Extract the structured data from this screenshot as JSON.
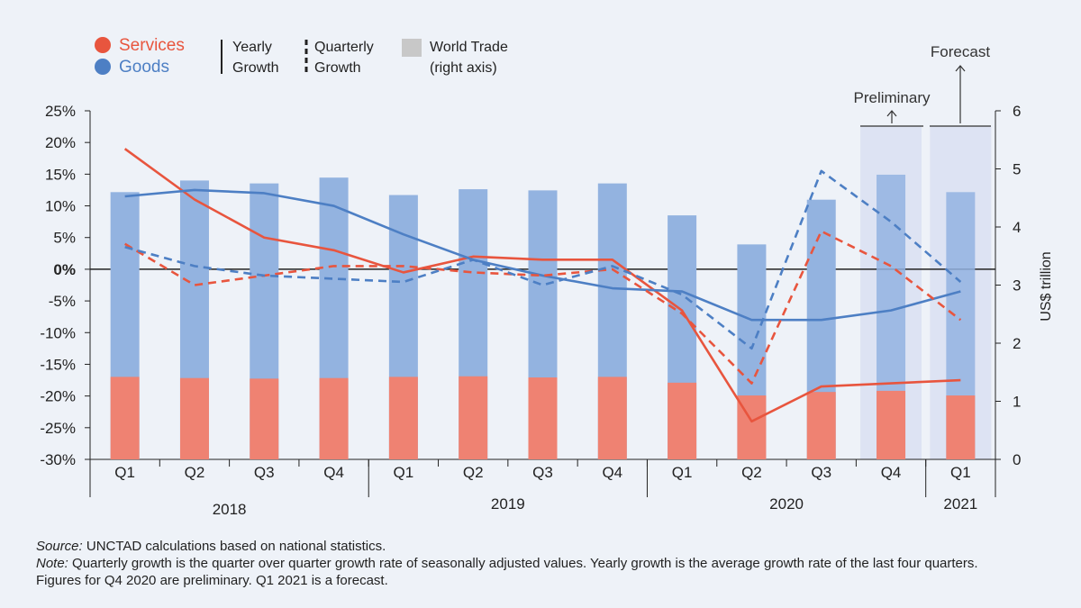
{
  "legend": {
    "services": "Services",
    "goods": "Goods",
    "yearly_line1": "Yearly",
    "yearly_line2": "Growth",
    "quarterly_line1": "Quarterly",
    "quarterly_line2": "Growth",
    "trade_line1": "World Trade",
    "trade_line2": "(right axis)"
  },
  "annotations": {
    "preliminary": "Preliminary",
    "forecast": "Forecast"
  },
  "notes": {
    "source_label": "Source:",
    "source_text": " UNCTAD calculations based on national statistics.",
    "note_label": "Note:",
    "note_text": " Quarterly growth is the quarter over quarter growth rate of seasonally adjusted values. Yearly growth is the average growth rate of the last four quarters.",
    "note_text2": "Figures for Q4 2020 are preliminary. Q1 2021 is a forecast."
  },
  "colors": {
    "services": "#e8553e",
    "goods": "#4d7fc4",
    "goods_bar": "#93b3e0",
    "services_bar": "#ef8272",
    "highlight": "#dde3f3",
    "trade_legend": "#c8c8c8"
  },
  "chart_data": {
    "type": "bar+line",
    "categories": [
      "Q1",
      "Q2",
      "Q3",
      "Q4",
      "Q1",
      "Q2",
      "Q3",
      "Q4",
      "Q1",
      "Q2",
      "Q3",
      "Q4",
      "Q1"
    ],
    "years": [
      {
        "label": "2018",
        "start": 0,
        "end": 3
      },
      {
        "label": "2019",
        "start": 4,
        "end": 7
      },
      {
        "label": "2020",
        "start": 8,
        "end": 11
      },
      {
        "label": "2021",
        "start": 12,
        "end": 12
      }
    ],
    "y_left": {
      "min": -30,
      "max": 25,
      "step": 5,
      "ticks": [
        "25%",
        "20%",
        "15%",
        "10%",
        "5%",
        "0%",
        "-5%",
        "-10%",
        "-15%",
        "-20%",
        "-25%",
        "-30%"
      ]
    },
    "y_right": {
      "min": 0,
      "max": 6,
      "step": 1,
      "ticks": [
        "0",
        "1",
        "2",
        "3",
        "4",
        "5",
        "6"
      ],
      "label": "US$ trillion"
    },
    "series": [
      {
        "name": "Goods",
        "kind": "bar",
        "axis": "right",
        "values": [
          4.6,
          4.8,
          4.75,
          4.85,
          4.55,
          4.65,
          4.63,
          4.75,
          4.2,
          3.7,
          4.47,
          4.9,
          4.6
        ]
      },
      {
        "name": "Services",
        "kind": "bar",
        "axis": "right",
        "values": [
          1.42,
          1.4,
          1.39,
          1.4,
          1.42,
          1.43,
          1.41,
          1.42,
          1.32,
          1.1,
          1.16,
          1.18,
          1.1
        ]
      },
      {
        "name": "Services",
        "kind": "line",
        "style": "yearly",
        "axis": "left",
        "values": [
          19,
          11,
          5,
          3,
          -0.5,
          2,
          1.5,
          1.5,
          -6.5,
          -24,
          -18.5,
          -18,
          -17.5
        ]
      },
      {
        "name": "Goods",
        "kind": "line",
        "style": "yearly",
        "axis": "left",
        "values": [
          11.5,
          12.5,
          12,
          10,
          5.5,
          1.5,
          -1,
          -3,
          -3.5,
          -8,
          -8,
          -6.5,
          -3.5
        ]
      },
      {
        "name": "Services",
        "kind": "line",
        "style": "quarterly",
        "axis": "left",
        "values": [
          4,
          -2.5,
          -1,
          0.5,
          0.5,
          -0.5,
          -1,
          0,
          -7,
          -18,
          6,
          0.5,
          -8
        ]
      },
      {
        "name": "Goods",
        "kind": "line",
        "style": "quarterly",
        "axis": "left",
        "values": [
          3.5,
          0.5,
          -1,
          -1.5,
          -2,
          1.5,
          -2.5,
          0.5,
          -4,
          -12.5,
          15.5,
          7.5,
          -2
        ]
      }
    ]
  }
}
